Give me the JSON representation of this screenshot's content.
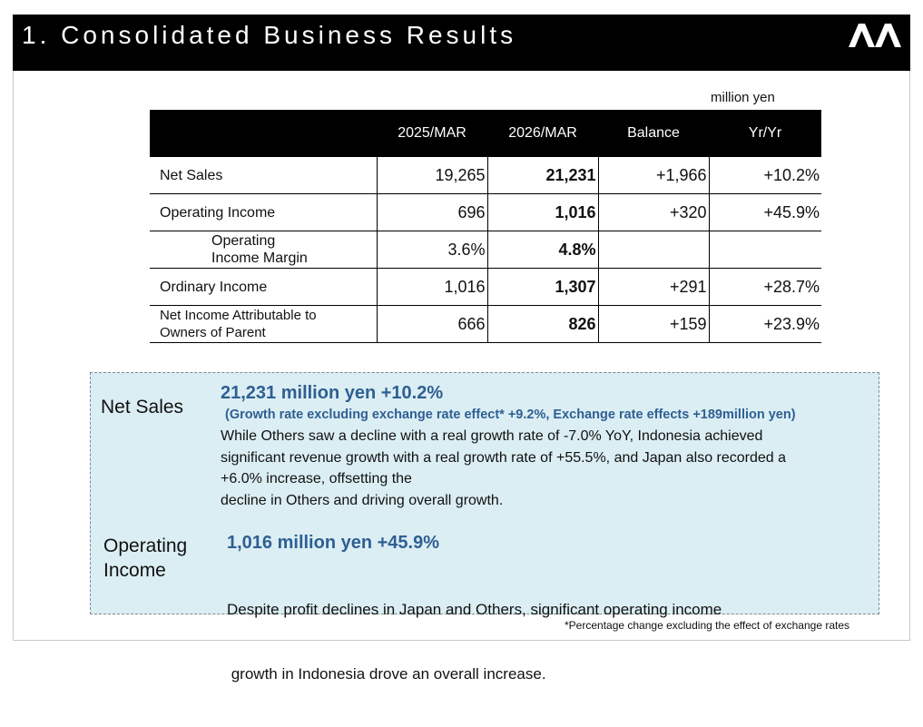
{
  "header": {
    "title": "1.  Consolidated Business Results"
  },
  "table": {
    "unit": "million yen",
    "columns": [
      "",
      "2025/MAR",
      "2026/MAR",
      "Balance",
      "Yr/Yr"
    ],
    "rows": [
      {
        "label": "Net Sales",
        "prev": "19,265",
        "curr": "21,231",
        "balance": "+1,966",
        "yoy": "+10.2%"
      },
      {
        "label": "Operating Income",
        "prev": "696",
        "curr": "1,016",
        "balance": "+320",
        "yoy": "+45.9%"
      },
      {
        "label": "Operating Income Margin",
        "prev": "3.6%",
        "curr": "4.8%",
        "balance": "",
        "yoy": ""
      },
      {
        "label": "Ordinary Income",
        "prev": "1,016",
        "curr": "1,307",
        "balance": "+291",
        "yoy": "+28.7%"
      },
      {
        "label": "Net Income Attributable to Owners of Parent",
        "prev": "666",
        "curr": "826",
        "balance": "+159",
        "yoy": "+23.9%"
      }
    ]
  },
  "summary": {
    "net_sales": {
      "label": "Net Sales",
      "headline": "21,231 million yen +10.2%",
      "subline": "(Growth rate excluding exchange rate effect* +9.2%, Exchange rate effects +189million yen)",
      "body": [
        "While Others saw a decline with a real growth rate of -7.0% YoY, Indonesia achieved",
        "significant revenue growth with a real growth rate of +55.5%, and Japan also recorded a",
        "+6.0% increase, offsetting the",
        "decline in Others and driving overall growth."
      ]
    },
    "operating_income": {
      "label_line1": "Operating",
      "label_line2": "Income",
      "headline": "1,016 million yen +45.9%",
      "body": [
        "Despite profit declines in Japan and Others, significant operating income",
        " growth in Indonesia drove an overall increase."
      ]
    }
  },
  "footnote": "*Percentage change excluding the effect of exchange rates"
}
